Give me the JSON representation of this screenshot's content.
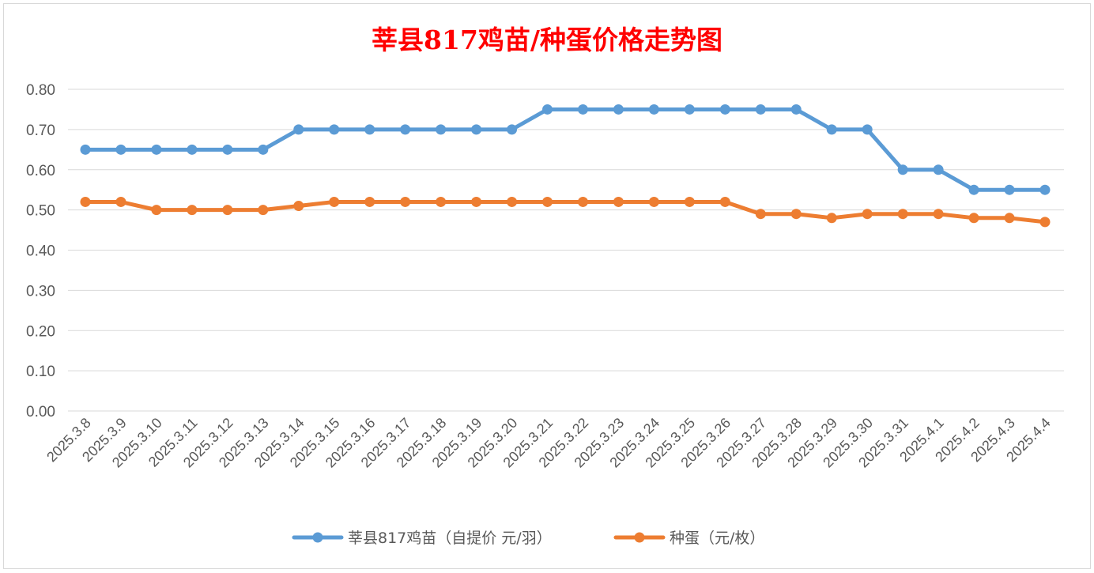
{
  "chart_data": {
    "type": "line",
    "title": "莘县817鸡苗/种蛋价格走势图",
    "xlabel": "",
    "ylabel": "",
    "ylim": [
      0,
      0.8
    ],
    "yticks": [
      "0.00",
      "0.10",
      "0.20",
      "0.30",
      "0.40",
      "0.50",
      "0.60",
      "0.70",
      "0.80"
    ],
    "ytick_values": [
      0,
      0.1,
      0.2,
      0.3,
      0.4,
      0.5,
      0.6,
      0.7,
      0.8
    ],
    "grid": true,
    "legend_position": "bottom",
    "categories": [
      "2025.3.8",
      "2025.3.9",
      "2025.3.10",
      "2025.3.11",
      "2025.3.12",
      "2025.3.13",
      "2025.3.14",
      "2025.3.15",
      "2025.3.16",
      "2025.3.17",
      "2025.3.18",
      "2025.3.19",
      "2025.3.20",
      "2025.3.21",
      "2025.3.22",
      "2025.3.23",
      "2025.3.24",
      "2025.3.25",
      "2025.3.26",
      "2025.3.27",
      "2025.3.28",
      "2025.3.29",
      "2025.3.30",
      "2025.3.31",
      "2025.4.1",
      "2025.4.2",
      "2025.4.3",
      "2025.4.4"
    ],
    "series": [
      {
        "name": "莘县817鸡苗（自提价 元/羽）",
        "color": "#5b9bd5",
        "values": [
          0.65,
          0.65,
          0.65,
          0.65,
          0.65,
          0.65,
          0.7,
          0.7,
          0.7,
          0.7,
          0.7,
          0.7,
          0.7,
          0.75,
          0.75,
          0.75,
          0.75,
          0.75,
          0.75,
          0.75,
          0.75,
          0.7,
          0.7,
          0.6,
          0.6,
          0.55,
          0.55,
          0.55
        ]
      },
      {
        "name": "种蛋（元/枚）",
        "color": "#ed7d31",
        "values": [
          0.52,
          0.52,
          0.5,
          0.5,
          0.5,
          0.5,
          0.51,
          0.52,
          0.52,
          0.52,
          0.52,
          0.52,
          0.52,
          0.52,
          0.52,
          0.52,
          0.52,
          0.52,
          0.52,
          0.49,
          0.49,
          0.48,
          0.49,
          0.49,
          0.49,
          0.48,
          0.48,
          0.47
        ]
      }
    ]
  }
}
